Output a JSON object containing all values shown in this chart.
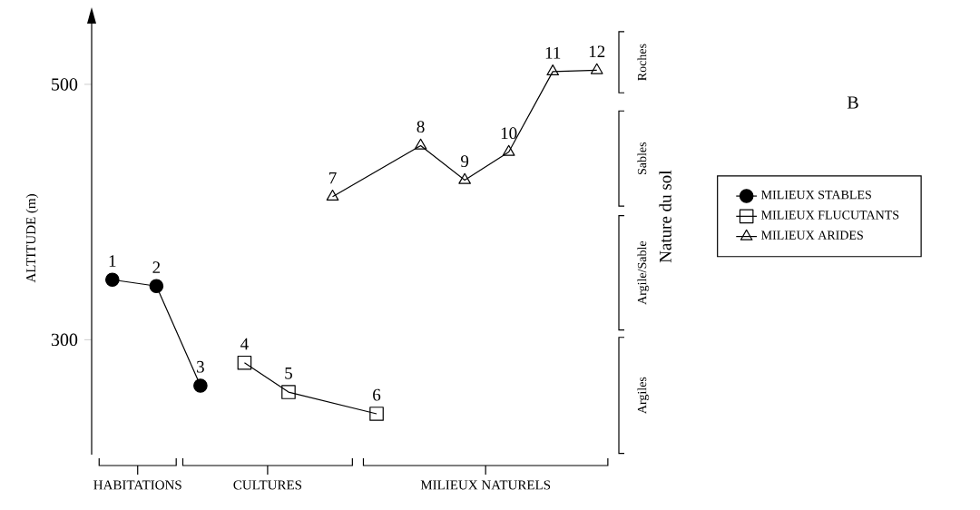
{
  "chart_data": {
    "type": "line",
    "categories": [
      "1",
      "2",
      "3",
      "4",
      "5",
      "7",
      "6",
      "8",
      "9",
      "10",
      "11",
      "12"
    ],
    "series": [
      {
        "name": "MILIEUX STABLES",
        "color": "#000000",
        "marker": "circle",
        "values": [
          347,
          342,
          264,
          null,
          null,
          null,
          null,
          null,
          null,
          null,
          null,
          null
        ]
      },
      {
        "name": "MILIEUX FLUCUTANTS",
        "color": "#000000",
        "marker": "square",
        "values": [
          null,
          null,
          null,
          282,
          259,
          null,
          242,
          null,
          null,
          null,
          null,
          null
        ]
      },
      {
        "name": "MILIEUX ARIDES",
        "color": "#000000",
        "marker": "triangle",
        "values": [
          null,
          null,
          null,
          null,
          null,
          412,
          null,
          452,
          425,
          447,
          510,
          511
        ]
      }
    ],
    "ylabel": "ALTITUDE (m)",
    "ylim": [
      210,
      549
    ],
    "yticks": [
      300,
      500
    ],
    "legend": "right",
    "annotations": [
      "HABITATIONS",
      "CULTURES",
      "MILIEUX NATURELS",
      "Roches",
      "Sables",
      "Argile/Sable",
      "Argiles",
      "Nature du sol",
      "B"
    ]
  }
}
